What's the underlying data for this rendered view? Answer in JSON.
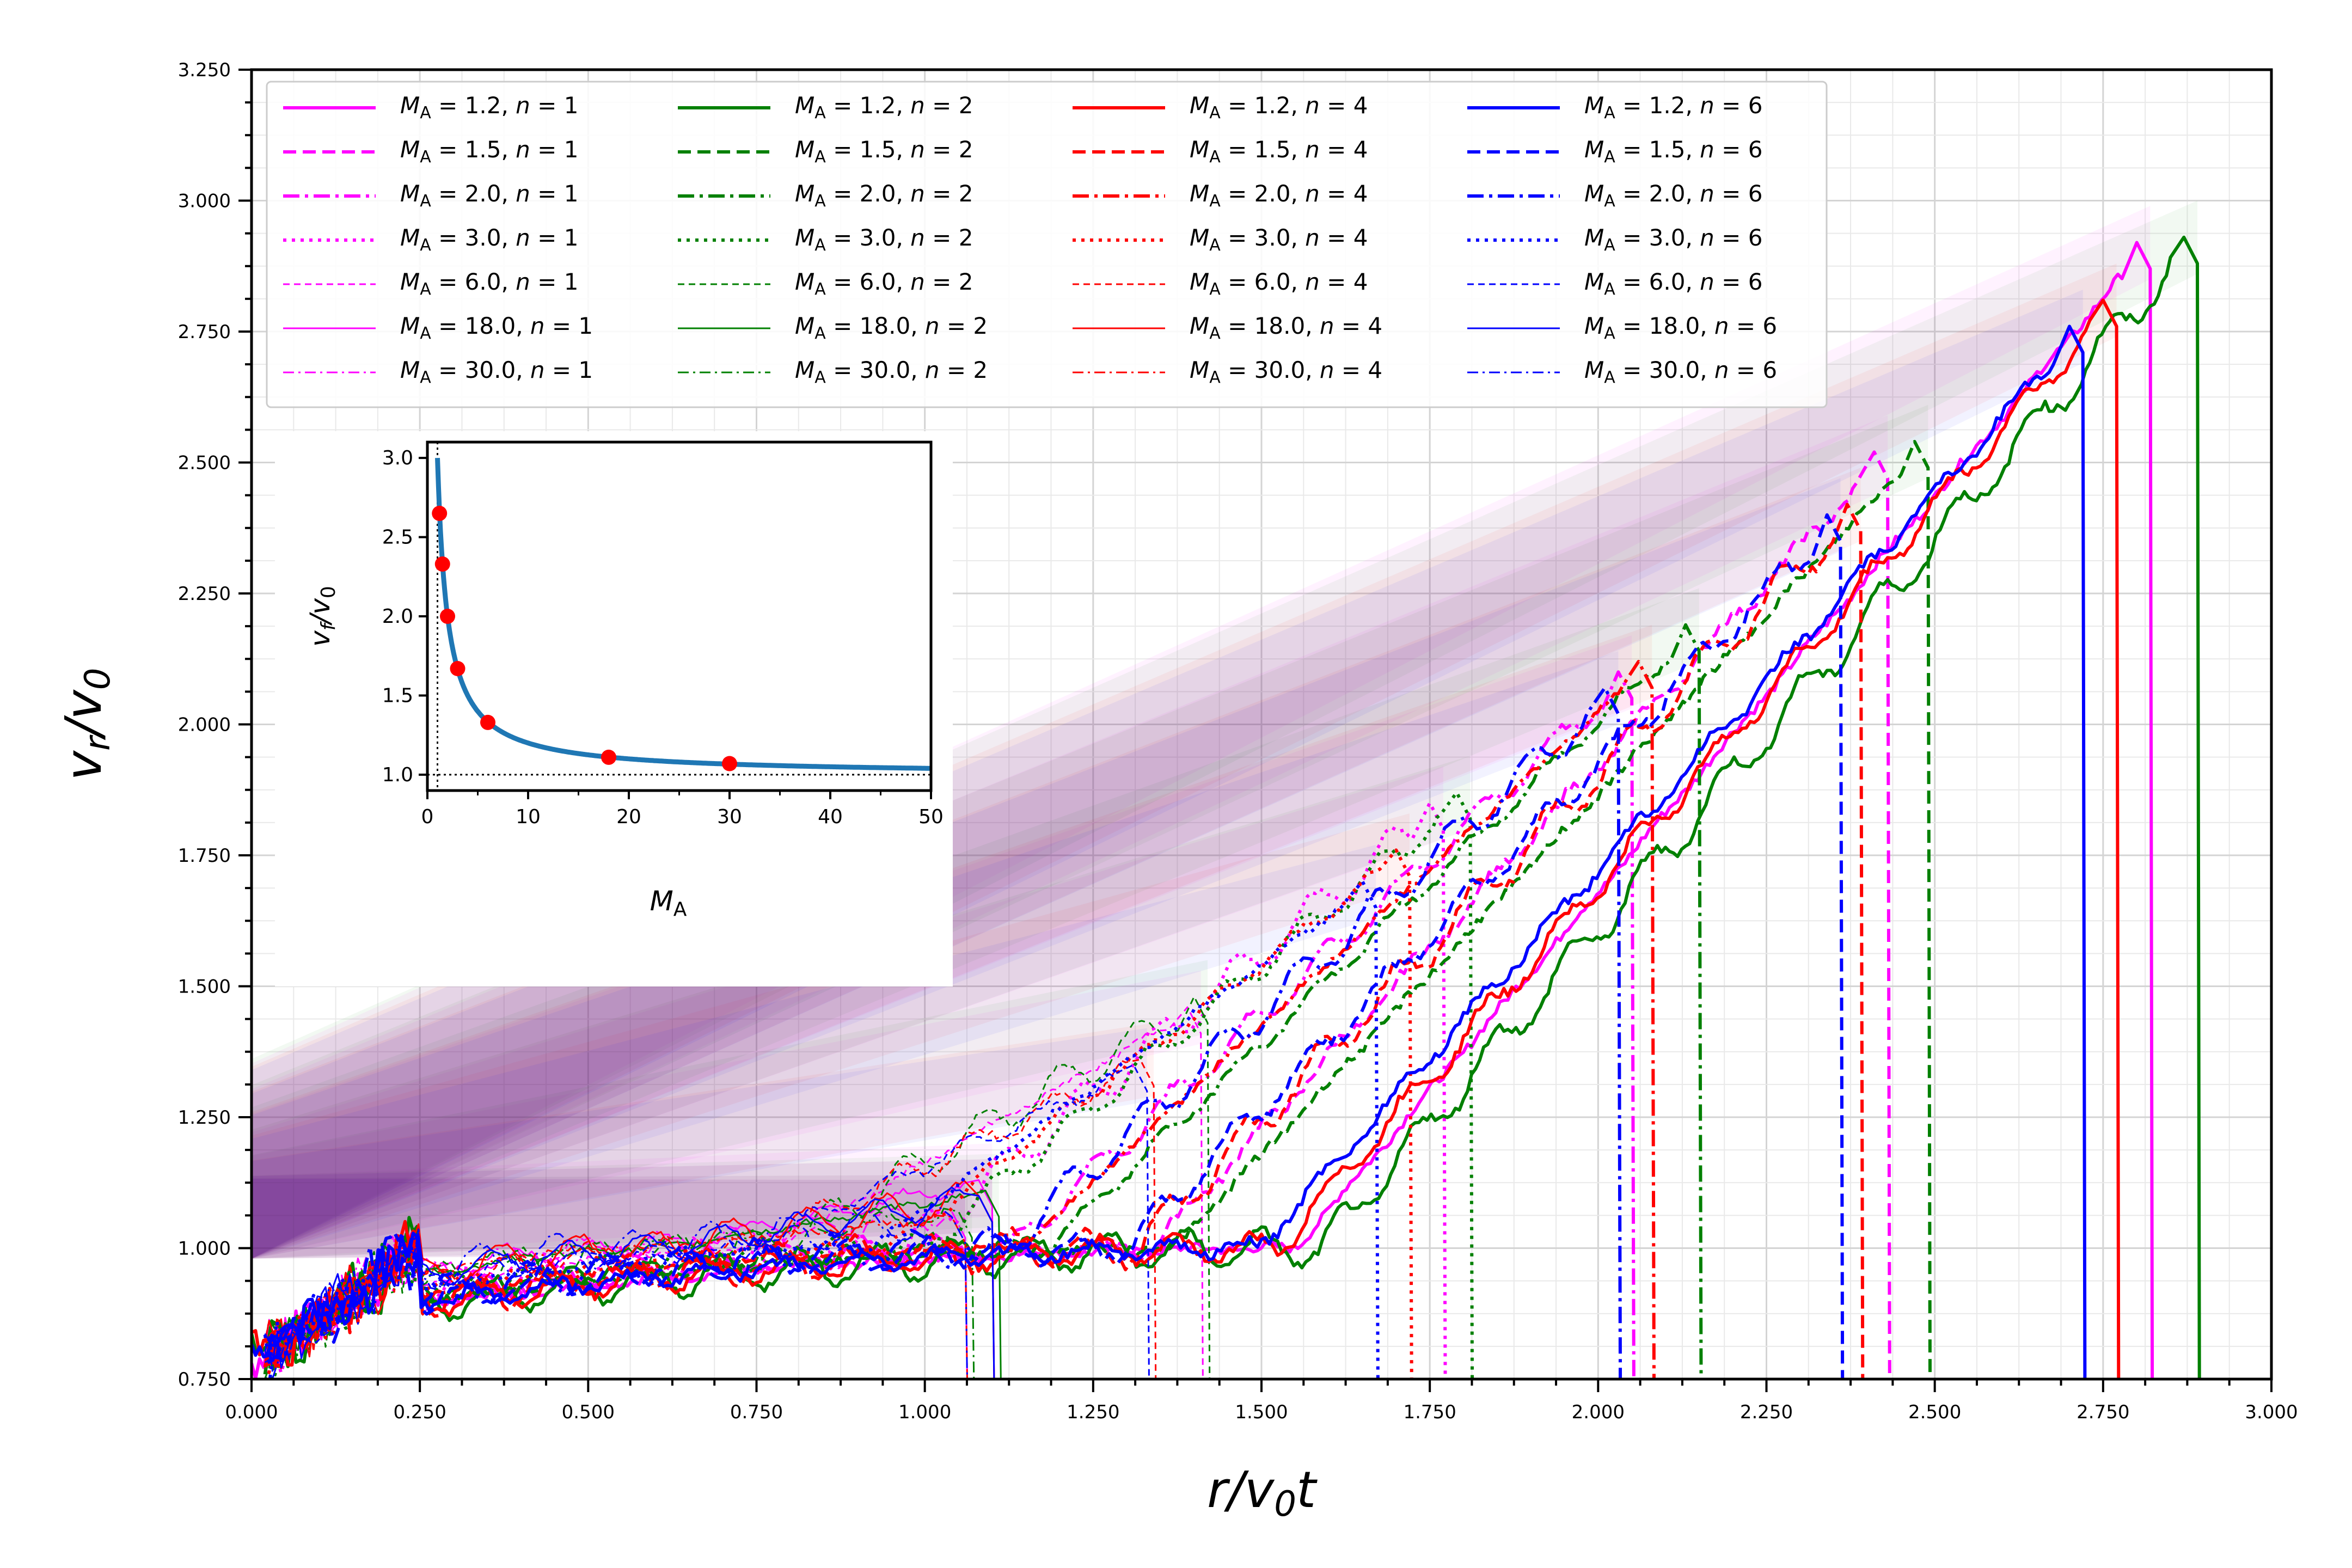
{
  "chart_data": [
    {
      "type": "line",
      "title": "",
      "xlabel": "r/v₀t",
      "ylabel": "v_r/v₀",
      "xlim": [
        0,
        3.0
      ],
      "ylim": [
        0.75,
        3.25
      ],
      "grid": true,
      "legend_placement": "top-left",
      "legend_columns": 4,
      "x_ticks": [
        "0.000",
        "0.250",
        "0.500",
        "0.750",
        "1.000",
        "1.250",
        "1.500",
        "1.750",
        "2.000",
        "2.250",
        "2.500",
        "2.750",
        "3.000"
      ],
      "y_ticks": [
        "0.750",
        "1.000",
        "1.250",
        "1.500",
        "1.750",
        "2.000",
        "2.250",
        "2.500",
        "2.750",
        "3.000",
        "3.250"
      ],
      "colors": {
        "n=1": "#ff00ff",
        "n=2": "#008000",
        "n=4": "#ff0000",
        "n=6": "#0000ff"
      },
      "line_styles": {
        "1.2": "solid",
        "1.5": "dashed",
        "2.0": "dashdot",
        "3.0": "dotted",
        "6.0": "thin dashed",
        "18.0": "thin solid",
        "30.0": "thin dashdot"
      },
      "legend_text": {
        "ma_prefix": "M",
        "ma_sub": "A",
        "eq": " = ",
        "n_sep": ", ",
        "n_prefix": "n",
        "n_eq": " = "
      },
      "series": [
        {
          "MA": "1.2",
          "n": "1",
          "front_x": 2.82,
          "peak_y": 2.92
        },
        {
          "MA": "1.5",
          "n": "1",
          "front_x": 2.43,
          "peak_y": 2.52
        },
        {
          "MA": "2.0",
          "n": "1",
          "front_x": 2.05,
          "peak_y": 2.1
        },
        {
          "MA": "3.0",
          "n": "1",
          "front_x": 1.77,
          "peak_y": 1.85
        },
        {
          "MA": "6.0",
          "n": "1",
          "front_x": 1.41,
          "peak_y": 1.46
        },
        {
          "MA": "18.0",
          "n": "1",
          "front_x": 1.1,
          "peak_y": 1.13
        },
        {
          "MA": "30.0",
          "n": "1",
          "front_x": 1.06,
          "peak_y": 1.07
        },
        {
          "MA": "1.2",
          "n": "2",
          "front_x": 2.89,
          "peak_y": 2.93
        },
        {
          "MA": "1.5",
          "n": "2",
          "front_x": 2.49,
          "peak_y": 2.54
        },
        {
          "MA": "2.0",
          "n": "2",
          "front_x": 2.15,
          "peak_y": 2.19
        },
        {
          "MA": "3.0",
          "n": "2",
          "front_x": 1.81,
          "peak_y": 1.87
        },
        {
          "MA": "6.0",
          "n": "2",
          "front_x": 1.42,
          "peak_y": 1.48
        },
        {
          "MA": "18.0",
          "n": "2",
          "front_x": 1.11,
          "peak_y": 1.11
        },
        {
          "MA": "30.0",
          "n": "2",
          "front_x": 1.07,
          "peak_y": 1.07
        },
        {
          "MA": "1.2",
          "n": "4",
          "front_x": 2.77,
          "peak_y": 2.81
        },
        {
          "MA": "1.5",
          "n": "4",
          "front_x": 2.39,
          "peak_y": 2.42
        },
        {
          "MA": "2.0",
          "n": "4",
          "front_x": 2.08,
          "peak_y": 2.12
        },
        {
          "MA": "3.0",
          "n": "4",
          "front_x": 1.72,
          "peak_y": 1.76
        },
        {
          "MA": "6.0",
          "n": "4",
          "front_x": 1.34,
          "peak_y": 1.36
        },
        {
          "MA": "18.0",
          "n": "4",
          "front_x": 1.1,
          "peak_y": 1.1
        },
        {
          "MA": "30.0",
          "n": "4",
          "front_x": 1.06,
          "peak_y": 1.06
        },
        {
          "MA": "1.2",
          "n": "6",
          "front_x": 2.72,
          "peak_y": 2.76
        },
        {
          "MA": "1.5",
          "n": "6",
          "front_x": 2.36,
          "peak_y": 2.4
        },
        {
          "MA": "2.0",
          "n": "6",
          "front_x": 2.03,
          "peak_y": 2.07
        },
        {
          "MA": "3.0",
          "n": "6",
          "front_x": 1.67,
          "peak_y": 1.7
        },
        {
          "MA": "6.0",
          "n": "6",
          "front_x": 1.33,
          "peak_y": 1.35
        },
        {
          "MA": "18.0",
          "n": "6",
          "front_x": 1.1,
          "peak_y": 1.1
        },
        {
          "MA": "30.0",
          "n": "6",
          "front_x": 1.06,
          "peak_y": 1.06
        }
      ]
    },
    {
      "type": "line",
      "inset": true,
      "title": "",
      "xlabel": "M_A",
      "ylabel": "v_f/v₀",
      "xlim": [
        0,
        50
      ],
      "ylim": [
        0.9,
        3.1
      ],
      "x_ticks": [
        "0",
        "10",
        "20",
        "30",
        "40",
        "50"
      ],
      "y_ticks": [
        "1.0",
        "1.5",
        "2.0",
        "2.5",
        "3.0"
      ],
      "reference_lines": {
        "y": 1.0,
        "x": 1.0
      },
      "curve_color": "#1f77b4",
      "point_color": "#ff0000",
      "points": [
        {
          "x": 1.2,
          "y": 2.65
        },
        {
          "x": 1.5,
          "y": 2.33
        },
        {
          "x": 2.0,
          "y": 2.0
        },
        {
          "x": 3.0,
          "y": 1.67
        },
        {
          "x": 6.0,
          "y": 1.33
        },
        {
          "x": 18.0,
          "y": 1.11
        },
        {
          "x": 30.0,
          "y": 1.07
        }
      ]
    }
  ]
}
